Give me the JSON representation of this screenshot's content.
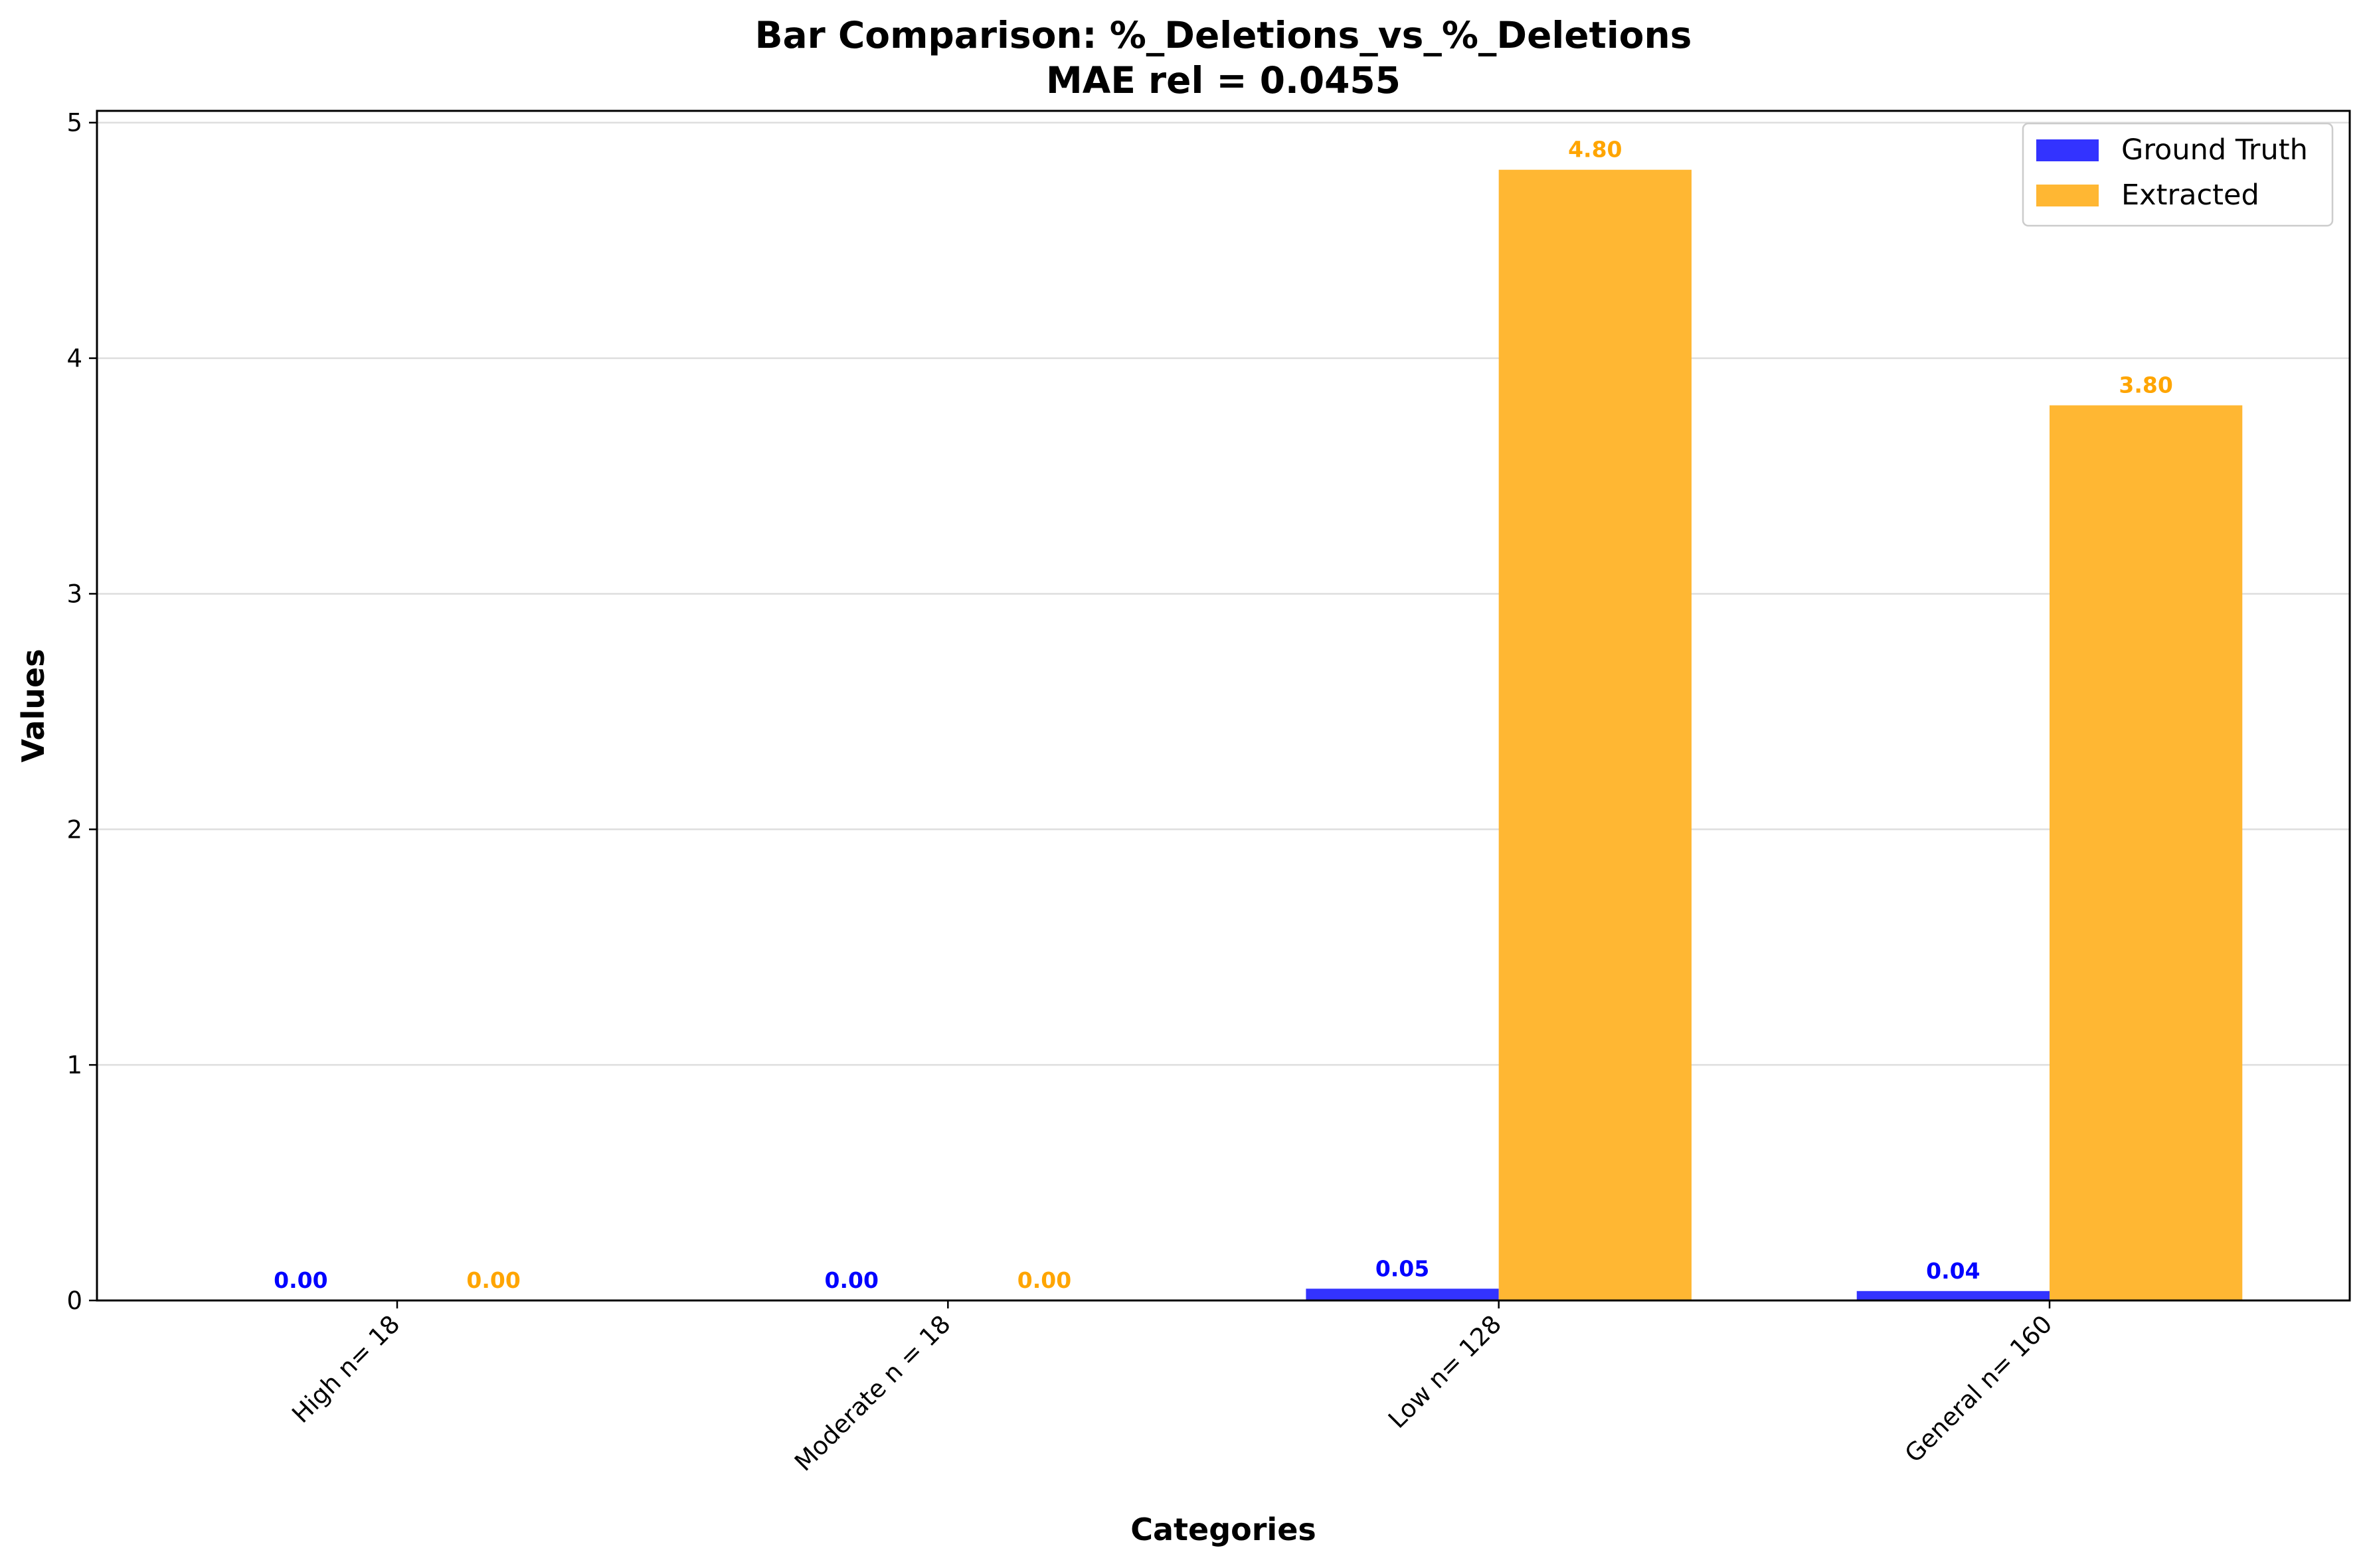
{
  "chart_data": {
    "type": "bar",
    "title": "Bar Comparison: %_Deletions_vs_%_Deletions",
    "subtitle": "MAE rel = 0.0455",
    "xlabel": "Categories",
    "ylabel": "Values",
    "categories": [
      "High n= 18",
      "Moderate n = 18",
      "Low n= 128",
      "General n= 160"
    ],
    "series": [
      {
        "name": "Ground Truth",
        "color": "#3333ff",
        "label_color": "#0000ff",
        "values": [
          0.0,
          0.0,
          0.05,
          0.04
        ],
        "labels": [
          "0.00",
          "0.00",
          "0.05",
          "0.04"
        ]
      },
      {
        "name": "Extracted",
        "color": "#ffb733",
        "label_color": "#ffa500",
        "values": [
          0.0,
          0.0,
          4.8,
          3.8
        ],
        "labels": [
          "0.00",
          "0.00",
          "4.80",
          "3.80"
        ]
      }
    ],
    "ylim": [
      0,
      5.05
    ],
    "yticks": [
      "0",
      "1",
      "2",
      "3",
      "4",
      "5"
    ],
    "grid": "horizontal",
    "legend_position": "top-right"
  }
}
